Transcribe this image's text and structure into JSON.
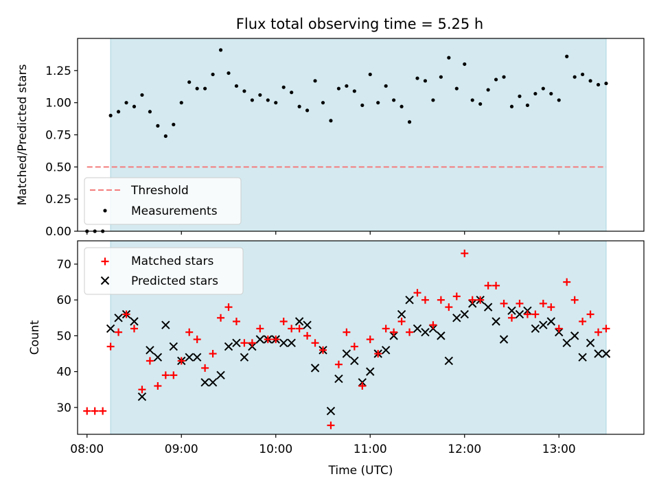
{
  "title": "Flux total observing time = 5.25 h",
  "colors": {
    "shade": "#d4eaf0",
    "threshold": "#f47c7c",
    "measurement": "#000000",
    "matched": "#ff0000",
    "predicted": "#000000"
  },
  "chart_data": [
    {
      "type": "scatter",
      "panel": "top",
      "ylabel": "Matched/Predicted stars",
      "xlim": [
        -0.1,
        5.9
      ],
      "ylim": [
        0,
        1.5
      ],
      "yticks": [
        0.0,
        0.25,
        0.5,
        0.75,
        1.0,
        1.25
      ],
      "ytick_labels": [
        "0.00",
        "0.25",
        "0.50",
        "0.75",
        "1.00",
        "1.25"
      ],
      "shaded_span": [
        0.25,
        5.5
      ],
      "threshold": {
        "name": "Threshold",
        "value": 0.5,
        "x_range": [
          0,
          5.5
        ],
        "style": "dashed"
      },
      "legend": [
        "Threshold",
        "Measurements"
      ],
      "legend_loc": "lower-left",
      "series": [
        {
          "name": "Measurements",
          "x": [
            0.0,
            0.0833,
            0.1667,
            0.25,
            0.3333,
            0.4167,
            0.5,
            0.5833,
            0.6667,
            0.75,
            0.8333,
            0.9167,
            1.0,
            1.0833,
            1.1667,
            1.25,
            1.3333,
            1.4167,
            1.5,
            1.5833,
            1.6667,
            1.75,
            1.8333,
            1.9167,
            2.0,
            2.0833,
            2.1667,
            2.25,
            2.3333,
            2.4167,
            2.5,
            2.5833,
            2.6667,
            2.75,
            2.8333,
            2.9167,
            3.0,
            3.0833,
            3.1667,
            3.25,
            3.3333,
            3.4167,
            3.5,
            3.5833,
            3.6667,
            3.75,
            3.8333,
            3.9167,
            4.0,
            4.0833,
            4.1667,
            4.25,
            4.3333,
            4.4167,
            4.5,
            4.5833,
            4.6667,
            4.75,
            4.8333,
            4.9167,
            5.0,
            5.0833,
            5.1667,
            5.25,
            5.3333,
            5.4167,
            5.5
          ],
          "y": [
            0.0,
            0.0,
            0.0,
            0.9,
            0.93,
            1.0,
            0.97,
            1.06,
            0.93,
            0.82,
            0.74,
            0.83,
            1.0,
            1.16,
            1.11,
            1.11,
            1.22,
            1.41,
            1.23,
            1.13,
            1.09,
            1.02,
            1.06,
            1.02,
            1.0,
            1.12,
            1.08,
            0.97,
            0.94,
            1.17,
            1.0,
            0.86,
            1.11,
            1.13,
            1.09,
            0.98,
            1.22,
            1.0,
            1.13,
            1.02,
            0.97,
            0.85,
            1.19,
            1.17,
            1.02,
            1.2,
            1.35,
            1.11,
            1.3,
            1.02,
            0.99,
            1.1,
            1.18,
            1.2,
            0.97,
            1.05,
            0.98,
            1.07,
            1.11,
            1.07,
            1.02,
            1.36,
            1.2,
            1.22,
            1.17,
            1.14,
            1.15
          ]
        }
      ]
    },
    {
      "type": "scatter",
      "panel": "bottom",
      "xlabel": "Time (UTC)",
      "ylabel": "Count",
      "xlim": [
        -0.1,
        5.9
      ],
      "ylim": [
        22.5,
        76.5
      ],
      "xticks": [
        0,
        1,
        2,
        3,
        4,
        5
      ],
      "xtick_labels": [
        "08:00",
        "09:00",
        "10:00",
        "11:00",
        "12:00",
        "13:00"
      ],
      "yticks": [
        30,
        40,
        50,
        60,
        70
      ],
      "ytick_labels": [
        "30",
        "40",
        "50",
        "60",
        "70"
      ],
      "shaded_span": [
        0.25,
        5.5
      ],
      "legend": [
        "Matched stars",
        "Predicted stars"
      ],
      "legend_loc": "upper-left",
      "series": [
        {
          "name": "Matched stars",
          "marker": "plus",
          "x": [
            0.0,
            0.0833,
            0.1667,
            0.25,
            0.3333,
            0.4167,
            0.5,
            0.5833,
            0.6667,
            0.75,
            0.8333,
            0.9167,
            1.0,
            1.0833,
            1.1667,
            1.25,
            1.3333,
            1.4167,
            1.5,
            1.5833,
            1.6667,
            1.75,
            1.8333,
            1.9167,
            2.0,
            2.0833,
            2.1667,
            2.25,
            2.3333,
            2.4167,
            2.5,
            2.5833,
            2.6667,
            2.75,
            2.8333,
            2.9167,
            3.0,
            3.0833,
            3.1667,
            3.25,
            3.3333,
            3.4167,
            3.5,
            3.5833,
            3.6667,
            3.75,
            3.8333,
            3.9167,
            4.0,
            4.0833,
            4.1667,
            4.25,
            4.3333,
            4.4167,
            4.5,
            4.5833,
            4.6667,
            4.75,
            4.8333,
            4.9167,
            5.0,
            5.0833,
            5.1667,
            5.25,
            5.3333,
            5.4167,
            5.5
          ],
          "y": [
            29,
            29,
            29,
            47,
            51,
            56,
            52,
            35,
            43,
            36,
            39,
            39,
            43,
            51,
            49,
            41,
            45,
            55,
            58,
            54,
            48,
            48,
            52,
            49,
            49,
            54,
            52,
            52,
            50,
            48,
            46,
            25,
            42,
            51,
            47,
            36,
            49,
            45,
            52,
            51,
            54,
            51,
            62,
            60,
            53,
            60,
            58,
            61,
            73,
            60,
            60,
            64,
            64,
            59,
            55,
            59,
            56,
            56,
            59,
            58,
            52,
            65,
            60,
            54,
            56,
            51,
            52
          ]
        },
        {
          "name": "Predicted stars",
          "marker": "x",
          "x": [
            0.25,
            0.3333,
            0.4167,
            0.5,
            0.5833,
            0.6667,
            0.75,
            0.8333,
            0.9167,
            1.0,
            1.0833,
            1.1667,
            1.25,
            1.3333,
            1.4167,
            1.5,
            1.5833,
            1.6667,
            1.75,
            1.8333,
            1.9167,
            2.0,
            2.0833,
            2.1667,
            2.25,
            2.3333,
            2.4167,
            2.5,
            2.5833,
            2.6667,
            2.75,
            2.8333,
            2.9167,
            3.0,
            3.0833,
            3.1667,
            3.25,
            3.3333,
            3.4167,
            3.5,
            3.5833,
            3.6667,
            3.75,
            3.8333,
            3.9167,
            4.0,
            4.0833,
            4.1667,
            4.25,
            4.3333,
            4.4167,
            4.5,
            4.5833,
            4.6667,
            4.75,
            4.8333,
            4.9167,
            5.0,
            5.0833,
            5.1667,
            5.25,
            5.3333,
            5.4167,
            5.5
          ],
          "y": [
            52,
            55,
            56,
            54,
            33,
            46,
            44,
            53,
            47,
            43,
            44,
            44,
            37,
            37,
            39,
            47,
            48,
            44,
            47,
            49,
            49,
            49,
            48,
            48,
            54,
            53,
            41,
            46,
            29,
            38,
            45,
            43,
            37,
            40,
            45,
            46,
            50,
            56,
            60,
            52,
            51,
            52,
            50,
            43,
            55,
            56,
            59,
            60,
            58,
            54,
            49,
            57,
            56,
            57,
            52,
            53,
            54,
            51,
            48,
            50,
            44,
            48,
            45,
            45
          ]
        }
      ]
    }
  ]
}
